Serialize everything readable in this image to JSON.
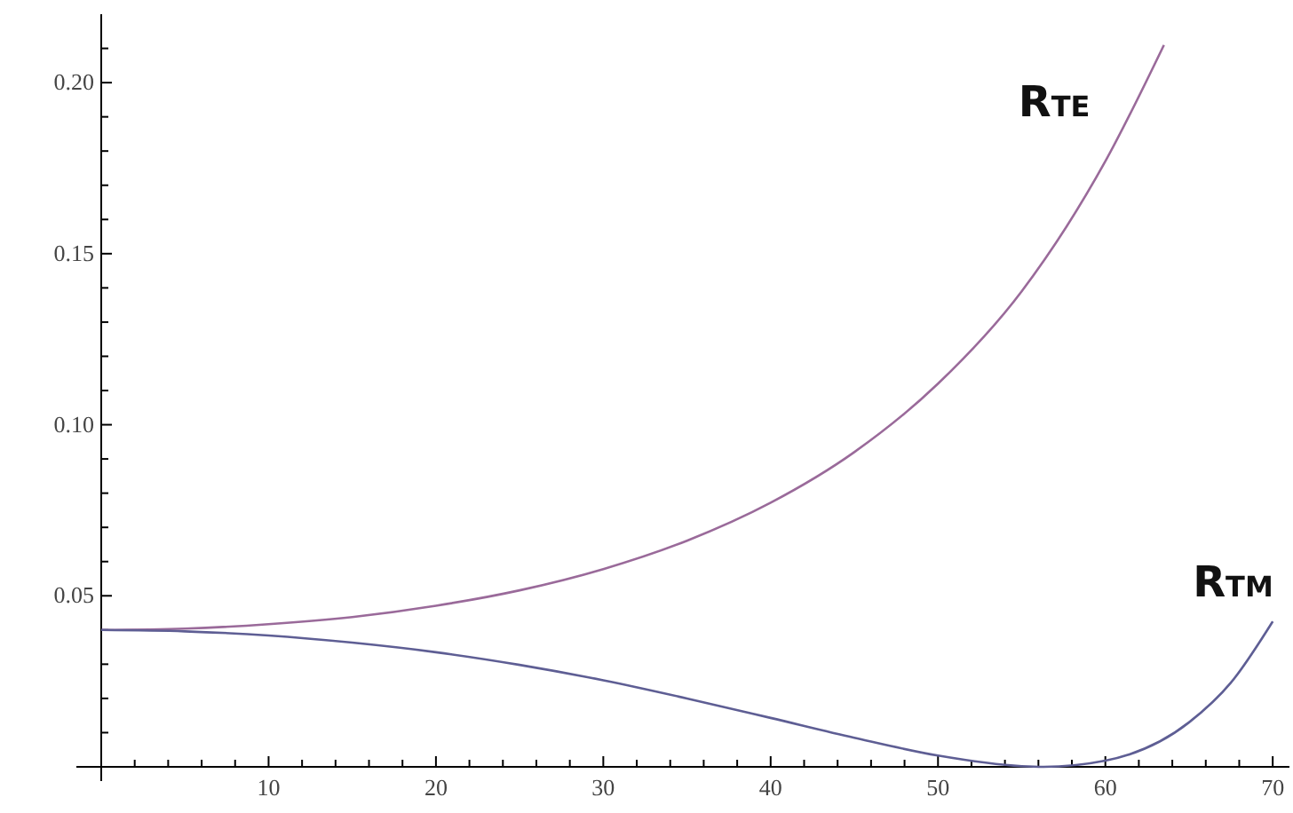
{
  "chart_data": {
    "type": "line",
    "xlim": [
      0,
      71
    ],
    "ylim": [
      0,
      0.22
    ],
    "xticks": [
      {
        "value": 2,
        "label": null
      },
      {
        "value": 4,
        "label": null
      },
      {
        "value": 6,
        "label": null
      },
      {
        "value": 8,
        "label": null
      },
      10,
      {
        "value": 12,
        "label": null
      },
      {
        "value": 14,
        "label": null
      },
      {
        "value": 16,
        "label": null
      },
      {
        "value": 18,
        "label": null
      },
      20,
      {
        "value": 22,
        "label": null
      },
      {
        "value": 24,
        "label": null
      },
      {
        "value": 26,
        "label": null
      },
      {
        "value": 28,
        "label": null
      },
      30,
      {
        "value": 32,
        "label": null
      },
      {
        "value": 34,
        "label": null
      },
      {
        "value": 36,
        "label": null
      },
      {
        "value": 38,
        "label": null
      },
      40,
      {
        "value": 42,
        "label": null
      },
      {
        "value": 44,
        "label": null
      },
      {
        "value": 46,
        "label": null
      },
      {
        "value": 48,
        "label": null
      },
      50,
      {
        "value": 52,
        "label": null
      },
      {
        "value": 54,
        "label": null
      },
      {
        "value": 56,
        "label": null
      },
      {
        "value": 58,
        "label": null
      },
      60,
      {
        "value": 62,
        "label": null
      },
      {
        "value": 64,
        "label": null
      },
      {
        "value": 66,
        "label": null
      },
      {
        "value": 68,
        "label": null
      },
      70
    ],
    "yticks": [
      {
        "value": 0.01,
        "label": null
      },
      {
        "value": 0.02,
        "label": null
      },
      {
        "value": 0.03,
        "label": null
      },
      {
        "value": 0.04,
        "label": null
      },
      {
        "value": 0.05,
        "label": "0.05"
      },
      {
        "value": 0.06,
        "label": null
      },
      {
        "value": 0.07,
        "label": null
      },
      {
        "value": 0.08,
        "label": null
      },
      {
        "value": 0.09,
        "label": null
      },
      {
        "value": 0.1,
        "label": "0.10"
      },
      {
        "value": 0.11,
        "label": null
      },
      {
        "value": 0.12,
        "label": null
      },
      {
        "value": 0.13,
        "label": null
      },
      {
        "value": 0.14,
        "label": null
      },
      {
        "value": 0.15,
        "label": "0.15"
      },
      {
        "value": 0.16,
        "label": null
      },
      {
        "value": 0.17,
        "label": null
      },
      {
        "value": 0.18,
        "label": null
      },
      {
        "value": 0.19,
        "label": null
      },
      {
        "value": 0.2,
        "label": "0.20"
      },
      {
        "value": 0.21,
        "label": null
      }
    ],
    "grid": false,
    "marker": "none",
    "line_style": "solid",
    "series": [
      {
        "name": "R$_{TE}$",
        "color": "#9a6a9a",
        "x": [
          0,
          5,
          10,
          15,
          20,
          25,
          30,
          35,
          40,
          45,
          50,
          55,
          60,
          63.5
        ],
        "values": [
          0.04,
          0.0404,
          0.0417,
          0.0438,
          0.0471,
          0.0516,
          0.0578,
          0.0661,
          0.0772,
          0.092,
          0.112,
          0.139,
          0.177,
          0.211
        ]
      },
      {
        "name": "R$_{TM}$",
        "color": "#5e5e94",
        "x": [
          0,
          5,
          10,
          15,
          20,
          25,
          30,
          35,
          40,
          45,
          50,
          55,
          56.3,
          60,
          65,
          67.5,
          70
        ],
        "values": [
          0.04,
          0.0396,
          0.0384,
          0.0363,
          0.0335,
          0.0298,
          0.0253,
          0.02,
          0.0143,
          0.0085,
          0.0033,
          0.0002,
          0,
          0.0018,
          0.013,
          0.0246,
          0.0425
        ]
      }
    ]
  }
}
